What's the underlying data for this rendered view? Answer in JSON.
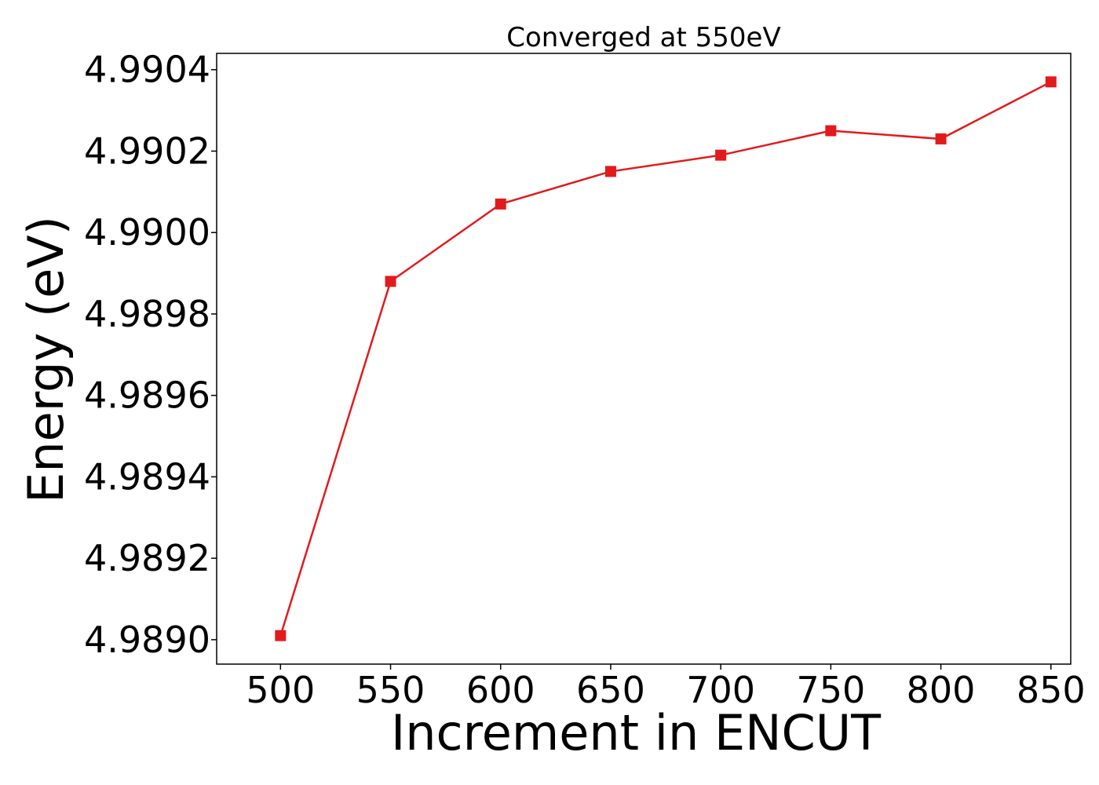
{
  "chart_data": {
    "type": "line",
    "title": "Converged at 550eV",
    "xlabel": "Increment in ENCUT",
    "ylabel": "Energy (eV)",
    "x": [
      500,
      550,
      600,
      650,
      700,
      750,
      800,
      850
    ],
    "xticks": [
      "500",
      "550",
      "600",
      "650",
      "700",
      "750",
      "800",
      "850"
    ],
    "yticks": [
      "4.9890",
      "4.9892",
      "4.9894",
      "4.9896",
      "4.9898",
      "4.9900",
      "4.9902",
      "4.9904"
    ],
    "ytick_values": [
      4.989,
      4.9892,
      4.9894,
      4.9896,
      4.9898,
      4.99,
      4.9902,
      4.9904
    ],
    "xlim": [
      471,
      859
    ],
    "ylim": [
      4.98894,
      4.99044
    ],
    "grid": false,
    "series": [
      {
        "values": [
          4.98901,
          4.98988,
          4.99007,
          4.99015,
          4.99019,
          4.99025,
          4.99023,
          4.99037
        ],
        "color": "#e31a1c",
        "marker": "square"
      }
    ]
  }
}
